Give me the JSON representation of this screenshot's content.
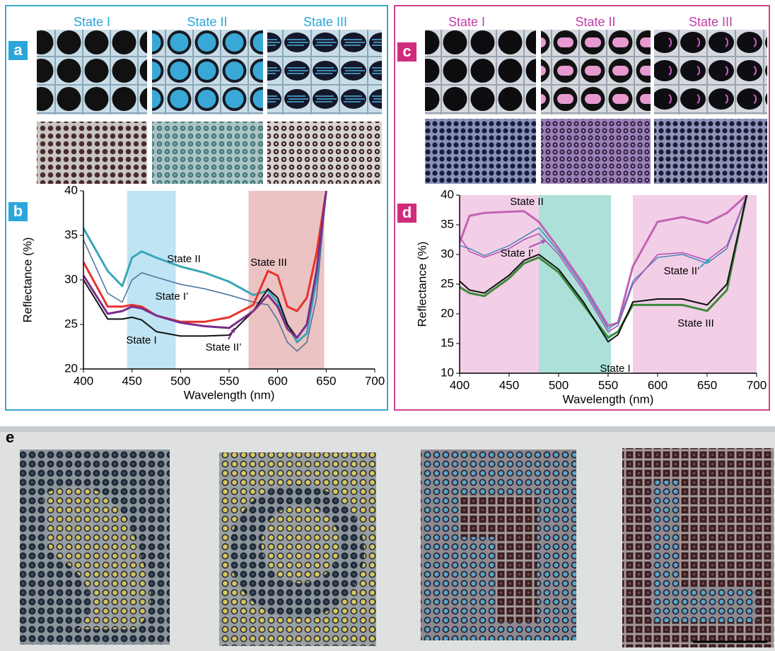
{
  "panels": {
    "a": {
      "letter": "a",
      "states": [
        "State I",
        "State II",
        "State III"
      ]
    },
    "b": {
      "letter": "b"
    },
    "c": {
      "letter": "c",
      "states": [
        "State I",
        "State II",
        "State III"
      ]
    },
    "d": {
      "letter": "d"
    },
    "e": {
      "letter": "e"
    }
  },
  "chart_data": [
    {
      "type": "line",
      "x_label": "Wavelength (nm)",
      "y_label": "Reflectance (%)",
      "xlim": [
        400,
        700
      ],
      "xticks": [
        400,
        450,
        500,
        550,
        600,
        650,
        700
      ],
      "ylim": [
        20,
        40
      ],
      "yticks": [
        20,
        25,
        30,
        35,
        40
      ],
      "bands": [
        {
          "x": [
            445,
            495
          ],
          "color": "#bfe4f3"
        },
        {
          "x": [
            570,
            648
          ],
          "color": "#ebc3c3"
        }
      ],
      "series": [
        {
          "name": "State II",
          "color": "#3aa6b9",
          "width": 3,
          "x": [
            400,
            425,
            440,
            450,
            460,
            475,
            500,
            525,
            550,
            575,
            590,
            600,
            610,
            620,
            630,
            640,
            650
          ],
          "values": [
            35.8,
            31,
            29.3,
            32.5,
            33.2,
            32.5,
            31.5,
            30.8,
            29.8,
            28.3,
            28.8,
            27.5,
            25,
            23,
            24,
            30,
            40
          ]
        },
        {
          "name": "State I’",
          "color": "#4a6f9a",
          "width": 1.5,
          "x": [
            400,
            425,
            440,
            450,
            460,
            475,
            500,
            525,
            550,
            575,
            590,
            600,
            610,
            620,
            630,
            640,
            650
          ],
          "values": [
            34.5,
            28.5,
            27.5,
            30,
            30.8,
            30.3,
            29.5,
            29,
            28.3,
            27.5,
            27.2,
            25.5,
            23,
            22,
            23,
            28,
            40
          ]
        },
        {
          "name": "State III",
          "color": "#e8322b",
          "width": 3,
          "x": [
            400,
            425,
            440,
            450,
            460,
            475,
            500,
            525,
            550,
            575,
            590,
            600,
            610,
            620,
            630,
            640,
            650
          ],
          "values": [
            32,
            27,
            27,
            27.2,
            27,
            26,
            25.3,
            25.3,
            25.8,
            27.2,
            31,
            30.5,
            27,
            26.5,
            28,
            33,
            40
          ]
        },
        {
          "name": "State I",
          "color": "#111111",
          "width": 2,
          "x": [
            400,
            425,
            440,
            450,
            460,
            475,
            500,
            525,
            550,
            575,
            590,
            600,
            610,
            620,
            630,
            640,
            650
          ],
          "values": [
            30,
            25.6,
            25.6,
            25.8,
            25.5,
            24.2,
            23.7,
            23.7,
            23.8,
            26.5,
            29,
            28,
            25,
            23.5,
            25,
            31,
            40
          ]
        },
        {
          "name": "State II’",
          "color": "#7b2d8b",
          "width": 3,
          "x": [
            400,
            425,
            440,
            450,
            460,
            475,
            500,
            525,
            550,
            575,
            590,
            600,
            610,
            620,
            630,
            640,
            650
          ],
          "values": [
            30.5,
            26.2,
            26.5,
            27,
            26.8,
            26,
            25.2,
            24.8,
            24.6,
            26.5,
            28.3,
            27,
            24.5,
            23.5,
            25,
            31,
            40
          ]
        }
      ]
    },
    {
      "type": "line",
      "x_label": "Wavelength (nm)",
      "y_label": "Reflectance (%)",
      "xlim": [
        400,
        700
      ],
      "xticks": [
        400,
        450,
        500,
        550,
        600,
        650,
        700
      ],
      "ylim": [
        10,
        40
      ],
      "yticks": [
        10,
        15,
        20,
        25,
        30,
        35,
        40
      ],
      "bands": [
        {
          "x": [
            400,
            480
          ],
          "color": "#f2cfe6"
        },
        {
          "x": [
            480,
            553
          ],
          "color": "#aee0da"
        },
        {
          "x": [
            575,
            700
          ],
          "color": "#f2cfe6"
        }
      ],
      "series": [
        {
          "name": "State II",
          "color": "#c262b4",
          "width": 3,
          "x": [
            400,
            410,
            425,
            450,
            465,
            480,
            500,
            525,
            550,
            560,
            575,
            600,
            625,
            650,
            670,
            690
          ],
          "values": [
            32,
            36.5,
            37,
            37.2,
            37.3,
            35.5,
            31,
            25,
            18,
            18.5,
            28,
            35.5,
            36.3,
            35.3,
            37,
            40
          ]
        },
        {
          "name": "State I’",
          "color": "#4a86b8",
          "width": 1.5,
          "x": [
            400,
            410,
            425,
            450,
            465,
            480,
            500,
            525,
            550,
            560,
            575,
            600,
            625,
            650,
            670,
            690
          ],
          "values": [
            31.5,
            31,
            29.8,
            31.5,
            33,
            34.5,
            30.5,
            24.5,
            17.5,
            18.5,
            25.5,
            29.5,
            30,
            28.5,
            31,
            40
          ]
        },
        {
          "name": "State II’",
          "color": "#b04fb0",
          "width": 1.5,
          "x": [
            400,
            410,
            425,
            450,
            465,
            480,
            500,
            525,
            550,
            560,
            575,
            600,
            625,
            650,
            670,
            690
          ],
          "values": [
            33,
            30.5,
            29.5,
            31,
            32.5,
            33.5,
            30,
            24,
            17,
            18,
            25,
            30,
            30.3,
            29,
            31.5,
            40
          ]
        },
        {
          "name": "State III",
          "color": "#3c8a3c",
          "width": 3,
          "x": [
            400,
            410,
            425,
            450,
            465,
            480,
            500,
            525,
            550,
            560,
            575,
            600,
            625,
            650,
            670,
            690
          ],
          "values": [
            24.5,
            23.5,
            23,
            26,
            28.5,
            29.5,
            27,
            21.5,
            16,
            17,
            21.5,
            21.5,
            21.5,
            20.5,
            24,
            40
          ]
        },
        {
          "name": "State I",
          "color": "#111111",
          "width": 2,
          "x": [
            400,
            410,
            425,
            450,
            465,
            480,
            500,
            525,
            550,
            560,
            575,
            600,
            625,
            650,
            670,
            690
          ],
          "values": [
            25.5,
            24,
            23.5,
            26.5,
            29,
            30,
            27.5,
            22,
            15.3,
            16.5,
            22,
            22.5,
            22.5,
            21.5,
            25,
            40
          ]
        }
      ]
    }
  ]
}
